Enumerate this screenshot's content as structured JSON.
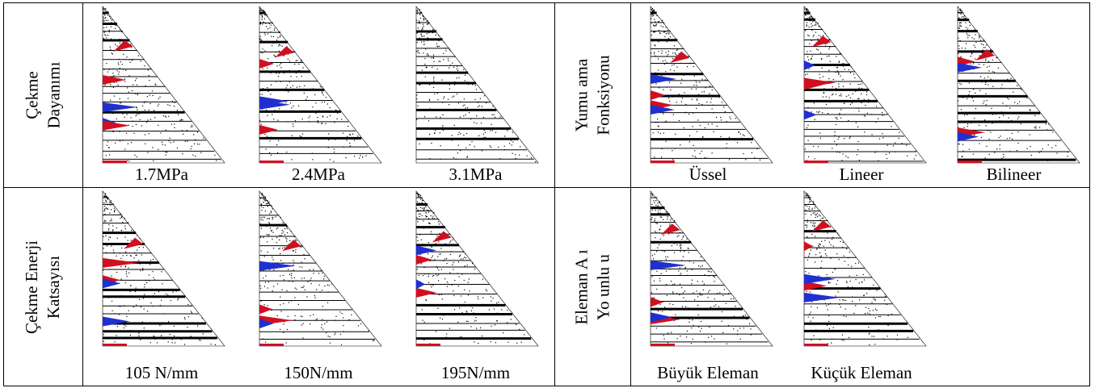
{
  "panels": [
    {
      "label": [
        "Çekme",
        "Dayanımı"
      ],
      "captions": [
        "1.7MPa",
        "2.4MPa",
        "3.1MPa"
      ]
    },
    {
      "label": [
        "Yumu ama",
        "Fonksiyonu"
      ],
      "captions": [
        "Üssel",
        "Lineer",
        "Bilineer"
      ]
    },
    {
      "label": [
        "Çekme Enerji",
        "Katsayısı"
      ],
      "captions": [
        "105 N/mm",
        "150N/mm",
        "195N/mm"
      ]
    },
    {
      "label": [
        "Eleman A ı",
        "Yo unlu u"
      ],
      "captions": [
        "Büyük Eleman",
        "Küçük Eleman"
      ]
    }
  ]
}
